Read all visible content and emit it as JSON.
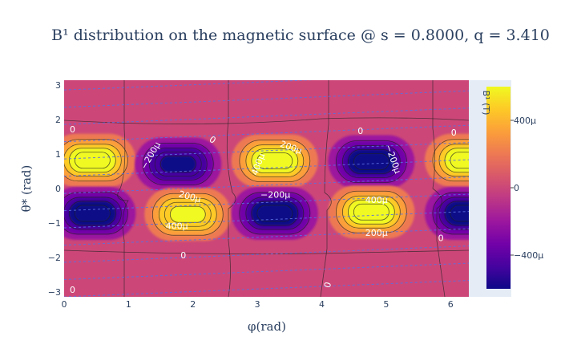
{
  "chart_data": {
    "type": "heatmap",
    "title": "B¹ distribution on the magnetic surface @ s = 0.8000, q = 3.410",
    "xlabel": "φ(rad)",
    "ylabel": "θ* (rad)",
    "x_range": [
      0,
      6.2832
    ],
    "y_range": [
      -3.1416,
      3.1416
    ],
    "x_ticks": [
      "0",
      "1",
      "2",
      "3",
      "4",
      "5",
      "6"
    ],
    "y_ticks": [
      "3",
      "2",
      "1",
      "0",
      "−1",
      "−2",
      "−3"
    ],
    "colorbar": {
      "title": "B¹ (T)",
      "range": [
        -0.0006,
        0.0006
      ],
      "ticks": [
        {
          "value": 0.0004,
          "label": "400μ"
        },
        {
          "value": 0,
          "label": "0"
        },
        {
          "value": -0.0004,
          "label": "−400μ"
        }
      ],
      "colorscale": [
        "#0d0887",
        "#46039f",
        "#7201a8",
        "#9c179e",
        "#bd3786",
        "#d8576b",
        "#ed7953",
        "#fb9f3a",
        "#fdca26",
        "#f0f921"
      ]
    },
    "blobs": [
      {
        "phi": 0.44,
        "theta": 0.82,
        "value": 0.0006
      },
      {
        "phi": 0.44,
        "theta": -0.72,
        "value": -0.0006
      },
      {
        "phi": 1.77,
        "theta": 0.71,
        "value": -0.00058
      },
      {
        "phi": 1.92,
        "theta": -0.75,
        "value": 0.00058
      },
      {
        "phi": 3.27,
        "theta": 0.8,
        "value": 0.0006
      },
      {
        "phi": 3.27,
        "theta": -0.72,
        "value": -0.0006
      },
      {
        "phi": 4.77,
        "theta": 0.78,
        "value": -0.0006
      },
      {
        "phi": 4.77,
        "theta": -0.68,
        "value": 0.0006
      },
      {
        "phi": 6.27,
        "theta": 0.82,
        "value": 0.0006
      },
      {
        "phi": 6.27,
        "theta": -0.72,
        "value": -0.0006
      }
    ],
    "contour_labels": [
      {
        "text": "0",
        "phi": 0.13,
        "theta": 1.7,
        "angle": 0
      },
      {
        "text": "−200μ",
        "phi": 1.35,
        "theta": 0.95,
        "angle": -60
      },
      {
        "text": "0",
        "phi": 2.3,
        "theta": 1.4,
        "angle": 35
      },
      {
        "text": "−200μ",
        "phi": 3.28,
        "theta": -0.2,
        "angle": 0
      },
      {
        "text": "200μ",
        "phi": 3.52,
        "theta": 1.18,
        "angle": 20
      },
      {
        "text": "400μ",
        "phi": 3.02,
        "theta": 0.7,
        "angle": -70
      },
      {
        "text": "200μ",
        "phi": 1.95,
        "theta": -0.25,
        "angle": 15
      },
      {
        "text": "400μ",
        "phi": 1.75,
        "theta": -1.1,
        "angle": 0
      },
      {
        "text": "0",
        "phi": 1.85,
        "theta": -1.95,
        "angle": 0
      },
      {
        "text": "0",
        "phi": 4.6,
        "theta": 1.65,
        "angle": 0
      },
      {
        "text": "−200μ",
        "phi": 5.1,
        "theta": 0.85,
        "angle": 70
      },
      {
        "text": "400μ",
        "phi": 4.85,
        "theta": -0.35,
        "angle": 0
      },
      {
        "text": "200μ",
        "phi": 4.85,
        "theta": -1.3,
        "angle": 0
      },
      {
        "text": "0",
        "phi": 6.05,
        "theta": 1.6,
        "angle": 0
      },
      {
        "text": "0",
        "phi": 5.85,
        "theta": -1.45,
        "angle": 0
      },
      {
        "text": "0",
        "phi": 4.1,
        "theta": -2.8,
        "angle": -75
      },
      {
        "text": "0",
        "phi": 0.13,
        "theta": -2.95,
        "angle": 0
      }
    ],
    "field_lines": {
      "slope": 0.0758,
      "spacing": 0.5,
      "color": "#5b6ee1",
      "style": "dashed"
    }
  }
}
